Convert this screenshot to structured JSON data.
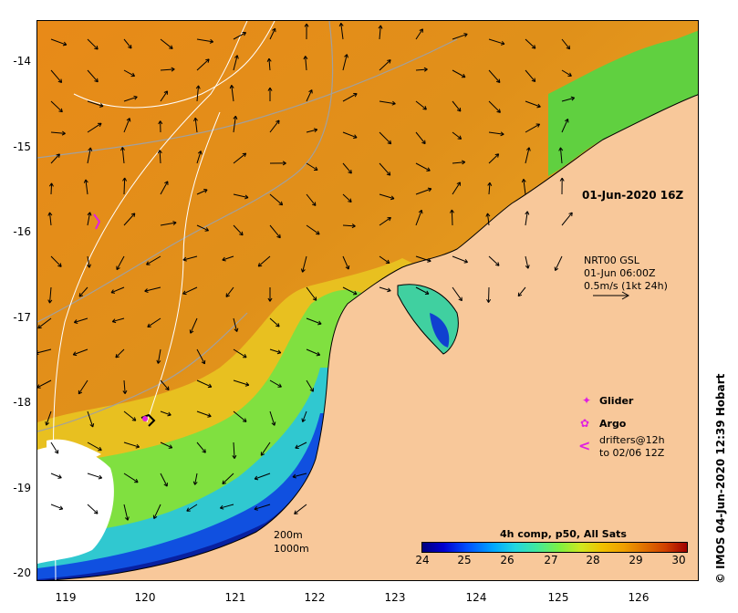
{
  "map": {
    "timestamp": "01-Jun-2020 16Z",
    "product": {
      "line1": "NRT00 GSL",
      "line2": "01-Jun 06:00Z",
      "line3": "0.5m/s (1kt 24h)"
    },
    "legend": {
      "glider": "Glider",
      "argo": "Argo",
      "drifters_line1": "drifters@12h",
      "drifters_line2": "to 02/06 12Z"
    },
    "scale": {
      "depth1": "200m",
      "depth2": "1000m"
    },
    "credit": "© IMOS 04-Jun-2020 12:39 Hobart",
    "axes": {
      "longitude_ticks": [
        "119",
        "120",
        "121",
        "122",
        "123",
        "124",
        "125",
        "126"
      ],
      "latitude_ticks": [
        "-14",
        "-15",
        "-16",
        "-17",
        "-18",
        "-19",
        "-20"
      ]
    },
    "colorbar": {
      "title": "4h comp, p50, All Sats",
      "ticks": [
        "24",
        "25",
        "26",
        "27",
        "28",
        "29",
        "30"
      ],
      "range": [
        24,
        30
      ]
    },
    "colors": {
      "land": "#f8c89a",
      "warm_sea": "#e89020",
      "cool_sea": "#0030c0",
      "marker": "#e020e0"
    }
  }
}
